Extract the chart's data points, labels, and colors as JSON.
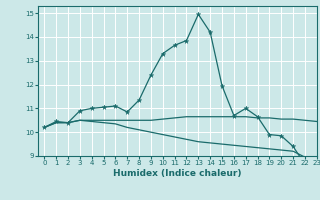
{
  "title": "",
  "xlabel": "Humidex (Indice chaleur)",
  "ylabel": "",
  "bg_color": "#cce8e8",
  "grid_color": "#ffffff",
  "line_color": "#1a6b6b",
  "xlim": [
    -0.5,
    23
  ],
  "ylim": [
    9,
    15.3
  ],
  "yticks": [
    9,
    10,
    11,
    12,
    13,
    14,
    15
  ],
  "xticks": [
    0,
    1,
    2,
    3,
    4,
    5,
    6,
    7,
    8,
    9,
    10,
    11,
    12,
    13,
    14,
    15,
    16,
    17,
    18,
    19,
    20,
    21,
    22,
    23
  ],
  "line1_x": [
    0,
    1,
    2,
    3,
    4,
    5,
    6,
    7,
    8,
    9,
    10,
    11,
    12,
    13,
    14,
    15,
    16,
    17,
    18,
    19,
    20,
    21,
    22,
    23
  ],
  "line1_y": [
    10.2,
    10.45,
    10.4,
    10.9,
    11.0,
    11.05,
    11.1,
    10.85,
    11.35,
    12.4,
    13.3,
    13.65,
    13.85,
    14.95,
    14.2,
    11.95,
    10.7,
    11.0,
    10.65,
    9.9,
    9.85,
    9.4,
    8.65,
    8.6
  ],
  "line2_x": [
    0,
    1,
    2,
    3,
    4,
    5,
    6,
    7,
    8,
    9,
    10,
    11,
    12,
    13,
    14,
    15,
    16,
    17,
    18,
    19,
    20,
    21,
    22,
    23
  ],
  "line2_y": [
    10.2,
    10.4,
    10.4,
    10.5,
    10.5,
    10.5,
    10.5,
    10.5,
    10.5,
    10.5,
    10.55,
    10.6,
    10.65,
    10.65,
    10.65,
    10.65,
    10.65,
    10.65,
    10.6,
    10.6,
    10.55,
    10.55,
    10.5,
    10.45
  ],
  "line3_x": [
    0,
    1,
    2,
    3,
    4,
    5,
    6,
    7,
    8,
    9,
    10,
    11,
    12,
    13,
    14,
    15,
    16,
    17,
    18,
    19,
    20,
    21,
    22,
    23
  ],
  "line3_y": [
    10.2,
    10.4,
    10.4,
    10.5,
    10.45,
    10.4,
    10.35,
    10.2,
    10.1,
    10.0,
    9.9,
    9.8,
    9.7,
    9.6,
    9.55,
    9.5,
    9.45,
    9.4,
    9.35,
    9.3,
    9.25,
    9.2,
    8.95,
    8.6
  ]
}
